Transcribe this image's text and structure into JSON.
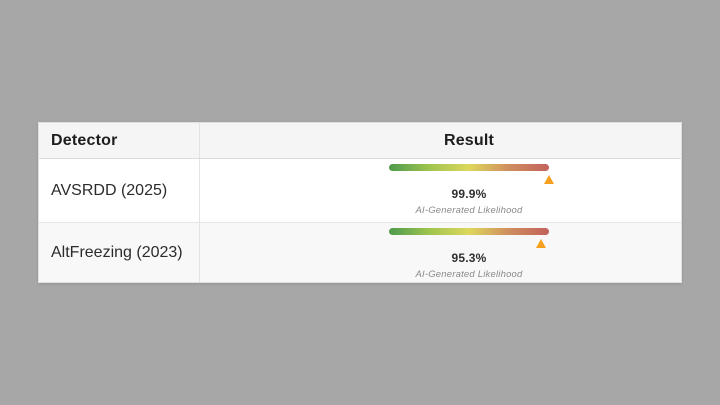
{
  "page": {
    "background_color": "#a7a7a7"
  },
  "table": {
    "header": {
      "detector_label": "Detector",
      "result_label": "Result"
    },
    "rows": [
      {
        "detector": "AVSRDD (2025)",
        "percent_label": "99.9%",
        "percent_value": 99.9,
        "caption": "AI-Generated Likelihood"
      },
      {
        "detector": "AltFreezing (2023)",
        "percent_label": "95.3%",
        "percent_value": 95.3,
        "caption": "AI-Generated Likelihood"
      }
    ],
    "gauge": {
      "gradient_stops": [
        "#4d9a4c",
        "#9ec44f",
        "#ddd75d",
        "#cf8e5e",
        "#c2615c"
      ],
      "marker_color": "#f5a11f",
      "scale_min": 0,
      "scale_max": 100
    },
    "colors": {
      "header_bg": "#f5f5f5",
      "row_alt_bg": "#f8f8f8",
      "border": "#e0e0e0"
    }
  }
}
